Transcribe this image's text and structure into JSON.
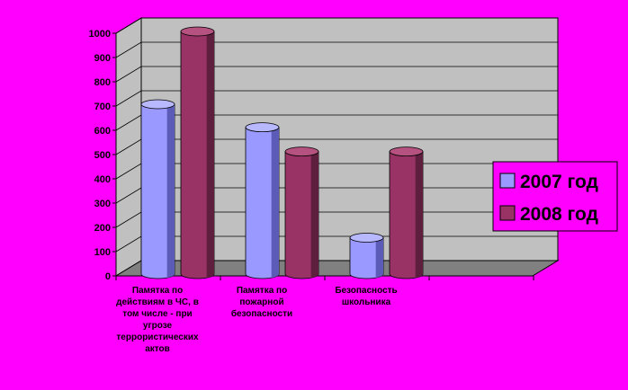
{
  "chart_data": {
    "type": "bar",
    "title": "",
    "xlabel": "",
    "ylabel": "",
    "ylim": [
      0,
      1000
    ],
    "yticks": [
      0,
      100,
      200,
      300,
      400,
      500,
      600,
      700,
      800,
      900,
      1000
    ],
    "grid": true,
    "legend_position": "right",
    "categories": [
      [
        "Памятка по",
        "действиям в ЧС, в",
        "том числе - при",
        "угрозе",
        "террористических",
        "актов"
      ],
      [
        "Памятка по",
        "пожарной",
        "безопасности"
      ],
      [
        "Безопасность",
        "школьника"
      ]
    ],
    "series": [
      {
        "name": "2007 год",
        "values": [
          700,
          605,
          150
        ]
      },
      {
        "name": "2008 год",
        "values": [
          1000,
          505,
          505
        ]
      }
    ]
  },
  "colors": {
    "background": "#FF00FF",
    "wall": "#C0C0C0",
    "floor": "#808080",
    "series_2007_front": "#9999FF",
    "series_2007_side": "#5C5CB8",
    "series_2007_top": "#B8B8FF",
    "series_2008_front": "#993366",
    "series_2008_side": "#5E1F3E",
    "series_2008_top": "#B5527F"
  }
}
